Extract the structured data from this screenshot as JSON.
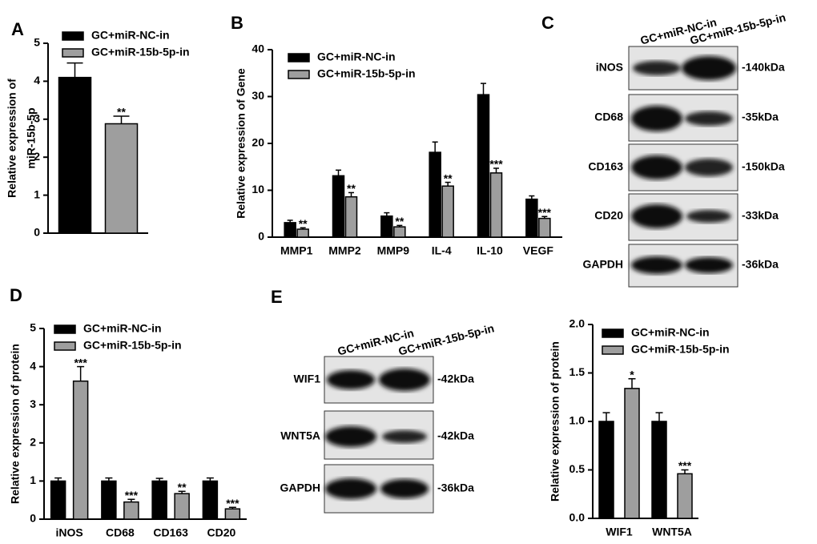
{
  "panel_letters": [
    "A",
    "B",
    "C",
    "D",
    "E"
  ],
  "chart_data": [
    {
      "type": "bar",
      "ylabel": [
        "Relative expression of",
        "miR-15b-5p"
      ],
      "categories": [
        null
      ],
      "ylim": [
        0,
        5
      ],
      "yticks": [
        0,
        1,
        2,
        3,
        4,
        5
      ],
      "series": [
        {
          "name": "GC+miR-NC-in",
          "color": "#000000",
          "values": [
            4.1
          ],
          "errors": [
            0.38
          ],
          "annotations": [
            null
          ]
        },
        {
          "name": "GC+miR-15b-5p-in",
          "color": "#9e9e9e",
          "values": [
            2.88
          ],
          "errors": [
            0.2
          ],
          "annotations": [
            "**"
          ]
        }
      ]
    },
    {
      "type": "bar",
      "ylabel": [
        "Relative expression of Gene"
      ],
      "categories": [
        "MMP1",
        "MMP2",
        "MMP9",
        "IL-4",
        "IL-10",
        "VEGF"
      ],
      "ylim": [
        0,
        40
      ],
      "yticks": [
        0,
        10,
        20,
        30,
        40
      ],
      "series": [
        {
          "name": "GC+miR-NC-in",
          "color": "#000000",
          "values": [
            3.1,
            13.1,
            4.5,
            18.1,
            30.4,
            8.1
          ],
          "errors": [
            0.5,
            1.2,
            0.7,
            2.2,
            2.4,
            0.7
          ],
          "annotations": [
            null,
            null,
            null,
            null,
            null,
            null
          ]
        },
        {
          "name": "GC+miR-15b-5p-in",
          "color": "#9e9e9e",
          "values": [
            1.7,
            8.6,
            2.2,
            10.9,
            13.7,
            4.0
          ],
          "errors": [
            0.3,
            0.9,
            0.3,
            0.8,
            1.0,
            0.4
          ],
          "annotations": [
            "**",
            "**",
            "**",
            "**",
            "***",
            "***"
          ]
        }
      ]
    },
    {
      "type": "bar",
      "ylabel": [
        "Relative expression of protein"
      ],
      "categories": [
        "iNOS",
        "CD68",
        "CD163",
        "CD20"
      ],
      "ylim": [
        0,
        5
      ],
      "yticks": [
        0,
        1,
        2,
        3,
        4,
        5
      ],
      "series": [
        {
          "name": "GC+miR-NC-in",
          "color": "#000000",
          "values": [
            1,
            1,
            1,
            1
          ],
          "errors": [
            0.08,
            0.08,
            0.07,
            0.08
          ],
          "annotations": [
            null,
            null,
            null,
            null
          ]
        },
        {
          "name": "GC+miR-15b-5p-in",
          "color": "#9e9e9e",
          "values": [
            3.62,
            0.45,
            0.67,
            0.27
          ],
          "errors": [
            0.38,
            0.07,
            0.06,
            0.04
          ],
          "annotations": [
            "***",
            "***",
            "**",
            "***"
          ]
        }
      ]
    },
    {
      "type": "bar",
      "ylabel": [
        "Relative expression of protein"
      ],
      "categories": [
        "WIF1",
        "WNT5A"
      ],
      "ylim": [
        0,
        2
      ],
      "yticks": [
        {
          "value": 0,
          "label": "0.0"
        },
        0.5,
        {
          "value": 1,
          "label": "1.0"
        },
        1.5,
        {
          "value": 2,
          "label": "2.0"
        }
      ],
      "series": [
        {
          "name": "GC+miR-NC-in",
          "color": "#000000",
          "values": [
            1,
            1
          ],
          "errors": [
            0.09,
            0.09
          ],
          "annotations": [
            null,
            null
          ]
        },
        {
          "name": "GC+miR-15b-5p-in",
          "color": "#9e9e9e",
          "values": [
            1.34,
            0.46
          ],
          "errors": [
            0.1,
            0.04
          ],
          "annotations": [
            "*",
            "***"
          ]
        }
      ]
    }
  ],
  "blots": [
    {
      "column_labels": [
        "GC+miR-NC-in",
        "GC+miR-15b-5p-in"
      ],
      "rows": [
        {
          "label": "iNOS",
          "size": "-140kDa"
        },
        {
          "label": "CD68",
          "size": "-35kDa"
        },
        {
          "label": "CD163",
          "size": "-150kDa"
        },
        {
          "label": "CD20",
          "size": "-33kDa"
        },
        {
          "label": "GAPDH",
          "size": "-36kDa"
        }
      ]
    },
    {
      "column_labels": [
        "GC+miR-NC-in",
        "GC+miR-15b-5p-in"
      ],
      "rows": [
        {
          "label": "WIF1",
          "size": "-42kDa"
        },
        {
          "label": "WNT5A",
          "size": "-42kDa"
        },
        {
          "label": "GAPDH",
          "size": "-36kDa"
        }
      ]
    }
  ]
}
